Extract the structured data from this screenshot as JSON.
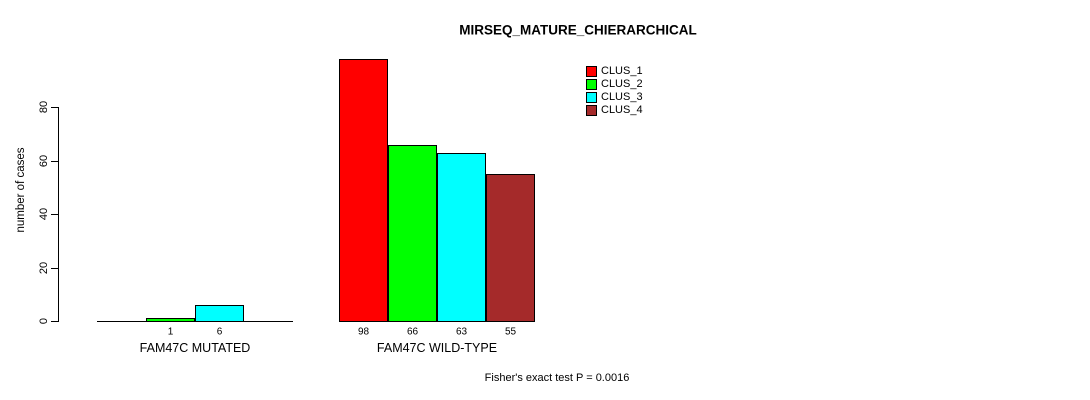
{
  "chart_data": {
    "type": "bar",
    "title": "MIRSEQ_MATURE_CHIERARCHICAL",
    "ylabel": "number of cases",
    "xlabel": "",
    "yticks": [
      0,
      20,
      40,
      60,
      80
    ],
    "ylim": [
      0,
      100
    ],
    "grid": false,
    "legend_position": "top-right",
    "series": [
      {
        "name": "CLUS_1",
        "color": "#FF0000"
      },
      {
        "name": "CLUS_2",
        "color": "#00FF00"
      },
      {
        "name": "CLUS_3",
        "color": "#00FFFF"
      },
      {
        "name": "CLUS_4",
        "color": "#A52A2A"
      }
    ],
    "groups": [
      {
        "label": "FAM47C MUTATED",
        "values": [
          0,
          1,
          6,
          0
        ],
        "bar_labels": [
          null,
          "1",
          "6",
          null
        ]
      },
      {
        "label": "FAM47C WILD-TYPE",
        "values": [
          98,
          66,
          63,
          55
        ],
        "bar_labels": [
          "98",
          "66",
          "63",
          "55"
        ]
      }
    ],
    "annotation": "Fisher's exact test P = 0.0016"
  }
}
